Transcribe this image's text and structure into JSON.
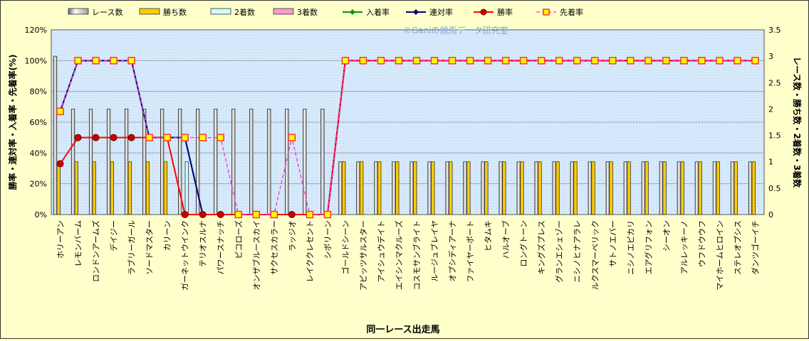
{
  "chart_data": {
    "type": "bar",
    "watermark": "©Ganiの競馬データ研究室",
    "xlabel": "同一レース出走馬",
    "ylabel_left": "勝率・連対率・入着率・先着率(%)",
    "ylabel_right": "レース数・勝ち数・2着数・3着数",
    "ylim_left": [
      0,
      120
    ],
    "ylim_right": [
      0,
      3.5
    ],
    "left_ticks": [
      "0%",
      "20%",
      "40%",
      "60%",
      "80%",
      "100%",
      "120%"
    ],
    "right_ticks": [
      "0",
      "0.5",
      "1",
      "1.5",
      "2",
      "2.5",
      "3",
      "3.5"
    ],
    "legend_position": "top",
    "categories": [
      "ホリーアン",
      "レモンバーム",
      "ロンドンアームズ",
      "デイジー",
      "ラブリーガール",
      "ソードマスター",
      "カリーン",
      "ガーネットウインク",
      "テリオスルナ",
      "パワースナッチ",
      "ピコローズ",
      "オンザブルースカイ",
      "サクセスカラー",
      "ラッジオ",
      "レイククレセント",
      "シボリーン",
      "ゴールドシーン",
      "アピッツサルスター",
      "アイシュウデイト",
      "エイシンマクルーズ",
      "コスモサンブライト",
      "ルージュブレイヤ",
      "オプシディアーナ",
      "ファイヤーボート",
      "ヒタムキ",
      "ハルオーブ",
      "ロングトーン",
      "キングズプレス",
      "グランエシェゾー",
      "ニシノヒナアラレ",
      "ルクスマーベリック",
      "サトノエバー",
      "ニシノエピカリ",
      "エアグリフォン",
      "シーオン",
      "アルレッキーノ",
      "ウフドウウフ",
      "マイホームヒロイン",
      "ステレオプシス",
      "ダンツゴーイチ"
    ],
    "bar_series": [
      {
        "name": "レース数",
        "color": "#ffffff",
        "values": [
          3,
          2,
          2,
          2,
          2,
          2,
          2,
          2,
          2,
          2,
          2,
          2,
          2,
          2,
          2,
          2,
          1,
          1,
          1,
          1,
          1,
          1,
          1,
          1,
          1,
          1,
          1,
          1,
          1,
          1,
          1,
          1,
          1,
          1,
          1,
          1,
          1,
          1,
          1,
          1
        ]
      },
      {
        "name": "勝ち数",
        "color": "#ffcc00",
        "values": [
          1,
          1,
          1,
          1,
          1,
          1,
          1,
          0,
          0,
          0,
          0,
          0,
          0,
          0,
          0,
          0,
          1,
          1,
          1,
          1,
          1,
          1,
          1,
          1,
          1,
          1,
          1,
          1,
          1,
          1,
          1,
          1,
          1,
          1,
          1,
          1,
          1,
          1,
          1,
          1
        ]
      },
      {
        "name": "2着数",
        "color": "#ccffff",
        "values": [
          0,
          0,
          0,
          0,
          0,
          0,
          0,
          1,
          0,
          0,
          0,
          0,
          0,
          0,
          0,
          0,
          0,
          0,
          0,
          0,
          0,
          0,
          0,
          0,
          0,
          0,
          0,
          0,
          0,
          0,
          0,
          0,
          0,
          0,
          0,
          0,
          0,
          0,
          0,
          0
        ]
      },
      {
        "name": "3着数",
        "color": "#ff99cc",
        "values": [
          0,
          0,
          0,
          0,
          0,
          0,
          0,
          0,
          0,
          0,
          0,
          0,
          0,
          0,
          0,
          0,
          0,
          0,
          0,
          0,
          0,
          0,
          0,
          0,
          0,
          0,
          0,
          0,
          0,
          0,
          0,
          0,
          0,
          0,
          0,
          0,
          0,
          0,
          0,
          0
        ]
      }
    ],
    "line_series": [
      {
        "name": "入着率",
        "color": "#009900",
        "marker": "diamond",
        "values": [
          67,
          100,
          100,
          100,
          100,
          50,
          50,
          50,
          0,
          0,
          0,
          0,
          0,
          0,
          0,
          0,
          100,
          100,
          100,
          100,
          100,
          100,
          100,
          100,
          100,
          100,
          100,
          100,
          100,
          100,
          100,
          100,
          100,
          100,
          100,
          100,
          100,
          100,
          100,
          100
        ]
      },
      {
        "name": "連対率",
        "color": "#000080",
        "marker": "diamond",
        "values": [
          67,
          100,
          100,
          100,
          100,
          50,
          50,
          50,
          0,
          0,
          0,
          0,
          0,
          0,
          0,
          0,
          100,
          100,
          100,
          100,
          100,
          100,
          100,
          100,
          100,
          100,
          100,
          100,
          100,
          100,
          100,
          100,
          100,
          100,
          100,
          100,
          100,
          100,
          100,
          100
        ]
      },
      {
        "name": "勝率",
        "color": "#ff0000",
        "marker": "circle",
        "values": [
          33,
          50,
          50,
          50,
          50,
          50,
          50,
          0,
          0,
          0,
          0,
          0,
          0,
          0,
          0,
          0,
          100,
          100,
          100,
          100,
          100,
          100,
          100,
          100,
          100,
          100,
          100,
          100,
          100,
          100,
          100,
          100,
          100,
          100,
          100,
          100,
          100,
          100,
          100,
          100
        ]
      },
      {
        "name": "先着率",
        "color": "#ff33cc",
        "marker": "square",
        "dashed": true,
        "values": [
          67,
          100,
          100,
          100,
          100,
          50,
          50,
          50,
          50,
          50,
          0,
          0,
          0,
          50,
          0,
          0,
          100,
          100,
          100,
          100,
          100,
          100,
          100,
          100,
          100,
          100,
          100,
          100,
          100,
          100,
          100,
          100,
          100,
          100,
          100,
          100,
          100,
          100,
          100,
          100
        ]
      }
    ]
  }
}
